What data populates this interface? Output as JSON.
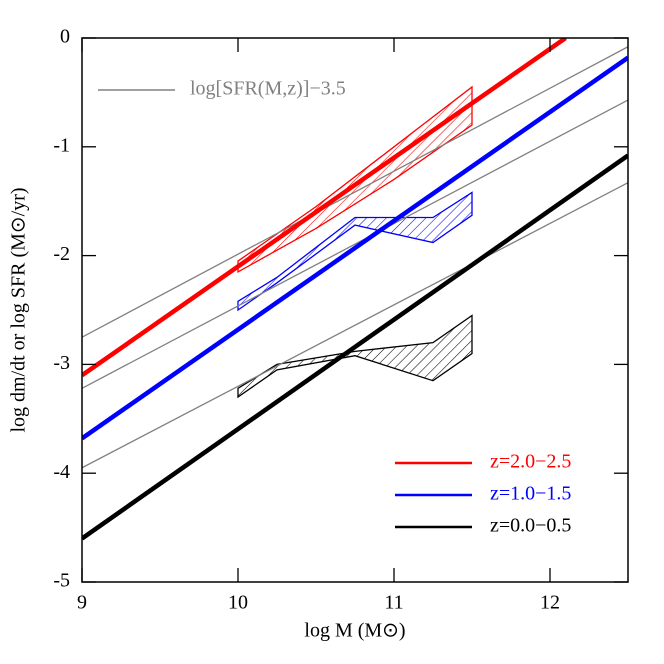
{
  "chart_data": {
    "type": "line",
    "xlabel": "log M  (M⊙)",
    "ylabel": "log dm/dt  or   log SFR  (M⊙/yr)",
    "xlim": [
      9,
      12.5
    ],
    "xticks": [
      9,
      10,
      11,
      12
    ],
    "ylim": [
      -5,
      0
    ],
    "yticks": [
      -5,
      -4,
      -3,
      -2,
      -1,
      0
    ],
    "reference": {
      "name": "log[SFR(M,z)]−3.5",
      "color": "#808080",
      "x": [
        9,
        12.5
      ],
      "lines": [
        [
          -2.75,
          -0.08
        ],
        [
          -3.22,
          -0.57
        ],
        [
          -3.95,
          -1.33
        ]
      ]
    },
    "series": [
      {
        "name": "z=2.0−2.5",
        "color": "#ff0000",
        "x": [
          9,
          12.1
        ],
        "values": [
          -3.1,
          0
        ]
      },
      {
        "name": "z=1.0−1.5",
        "color": "#0000ff",
        "x": [
          9,
          12.5
        ],
        "values": [
          -3.68,
          -0.18
        ]
      },
      {
        "name": "z=0.0−0.5",
        "color": "#000000",
        "x": [
          9,
          12.5
        ],
        "values": [
          -4.6,
          -1.08
        ]
      }
    ],
    "bands": [
      {
        "color": "#ff0000",
        "x": [
          10,
          10.5,
          11,
          11.5
        ],
        "upper": [
          -2.05,
          -1.55,
          -1.0,
          -0.45
        ],
        "lower": [
          -2.15,
          -1.75,
          -1.3,
          -0.8
        ]
      },
      {
        "color": "#0000ff",
        "x": [
          10,
          10.25,
          10.75,
          11.25,
          11.5
        ],
        "upper": [
          -2.42,
          -2.2,
          -1.65,
          -1.65,
          -1.42
        ],
        "lower": [
          -2.5,
          -2.25,
          -1.72,
          -1.88,
          -1.63
        ]
      },
      {
        "color": "#000000",
        "x": [
          10,
          10.25,
          10.75,
          11.25,
          11.5
        ],
        "upper": [
          -3.22,
          -3.0,
          -2.88,
          -2.8,
          -2.55
        ],
        "lower": [
          -3.3,
          -3.05,
          -2.92,
          -3.15,
          -2.9
        ]
      }
    ]
  }
}
